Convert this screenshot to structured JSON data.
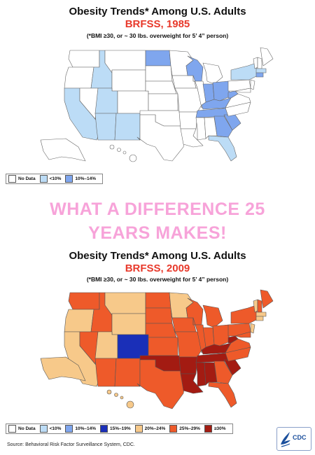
{
  "map1985": {
    "title": "Obesity Trends* Among U.S. Adults",
    "subtitle": "BRFSS, 1985",
    "note": "(*BMI ≥30, or ~ 30 lbs. overweight for 5’ 4” person)",
    "legend": [
      {
        "label": "No Data",
        "color": "#ffffff"
      },
      {
        "label": "<10%",
        "color": "#bcdcf6"
      },
      {
        "label": "10%–14%",
        "color": "#7fa6ee"
      }
    ]
  },
  "banner": {
    "line1": "WHAT A DIFFERENCE 25",
    "line2": "YEARS MAKES!"
  },
  "map2009": {
    "title": "Obesity Trends* Among U.S. Adults",
    "subtitle": "BRFSS, 2009",
    "note": "(*BMI ≥30, or ~ 30 lbs. overweight for 5’ 4” person)",
    "legend": [
      {
        "label": "No Data",
        "color": "#ffffff"
      },
      {
        "label": "<10%",
        "color": "#bcdcf6"
      },
      {
        "label": "10%–14%",
        "color": "#7fa6ee"
      },
      {
        "label": "15%–19%",
        "color": "#1a2fb8"
      },
      {
        "label": "20%–24%",
        "color": "#f7c98a"
      },
      {
        "label": "25%–29%",
        "color": "#ee5a2a"
      },
      {
        "label": "≥30%",
        "color": "#a31b12"
      }
    ]
  },
  "source": "Source: Behavioral Risk Factor Surveillance System, CDC.",
  "logo": {
    "text": "CDC"
  },
  "colors": {
    "white": "#ffffff",
    "light_blue": "#bcdcf6",
    "mid_blue": "#7fa6ee",
    "dark_blue": "#1a2fb8",
    "tan": "#f7c98a",
    "orange": "#ee5a2a",
    "dark_red": "#a31b12",
    "banner_pink": "#f7a3d9",
    "subtitle_red": "#e8392b"
  }
}
